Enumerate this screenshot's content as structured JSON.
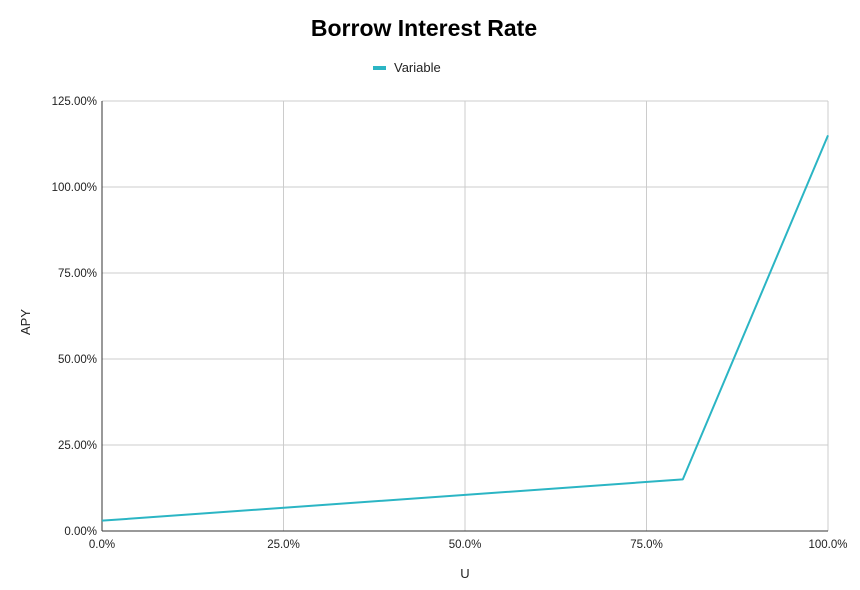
{
  "chart_data": {
    "type": "line",
    "title": "Borrow Interest Rate",
    "xlabel": "U",
    "ylabel": "APY",
    "xlim": [
      0,
      100
    ],
    "ylim": [
      0,
      125
    ],
    "x_ticks": [
      "0.0%",
      "25.0%",
      "50.0%",
      "75.0%",
      "100.0%"
    ],
    "x_tick_values": [
      0,
      25,
      50,
      75,
      100
    ],
    "y_ticks": [
      "0.00%",
      "25.00%",
      "50.00%",
      "75.00%",
      "100.00%",
      "125.00%"
    ],
    "y_tick_values": [
      0,
      25,
      50,
      75,
      100,
      125
    ],
    "grid": true,
    "legend_position": "top-center",
    "series": [
      {
        "name": "Variable",
        "color": "#2bb5c4",
        "x": [
          0,
          80,
          100
        ],
        "y": [
          3,
          15,
          115
        ]
      }
    ]
  }
}
